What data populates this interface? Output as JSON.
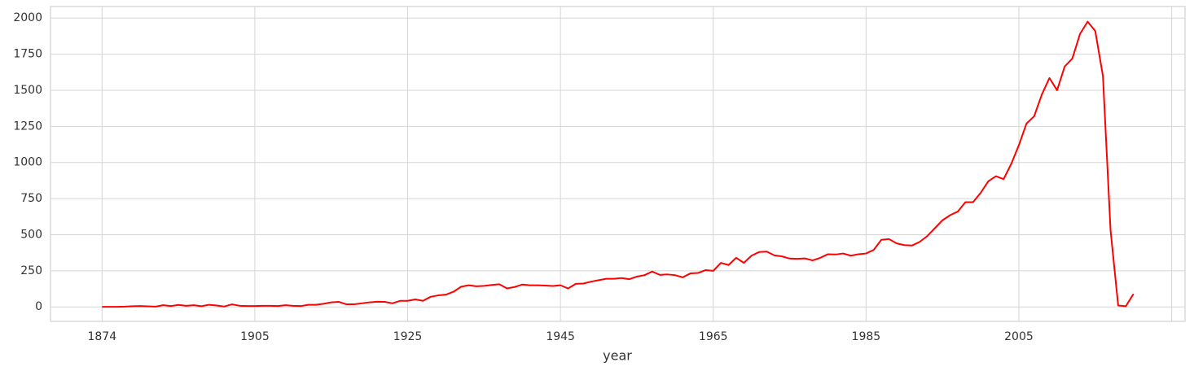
{
  "chart_data": {
    "type": "line",
    "x_label": "year",
    "categories": [
      "1874",
      null,
      null,
      null,
      null,
      null,
      null,
      null,
      null,
      null,
      null,
      null,
      null,
      null,
      null,
      null,
      null,
      null,
      null,
      null,
      "1905",
      null,
      null,
      null,
      null,
      null,
      null,
      null,
      null,
      null,
      null,
      null,
      null,
      null,
      null,
      null,
      null,
      null,
      null,
      null,
      "1925",
      null,
      null,
      null,
      null,
      null,
      null,
      null,
      null,
      null,
      null,
      null,
      null,
      null,
      null,
      null,
      null,
      null,
      null,
      null,
      "1945",
      null,
      null,
      null,
      null,
      null,
      null,
      null,
      null,
      null,
      null,
      null,
      null,
      null,
      null,
      null,
      null,
      null,
      null,
      null,
      "1965",
      null,
      null,
      null,
      null,
      null,
      null,
      null,
      null,
      null,
      null,
      null,
      null,
      null,
      null,
      null,
      null,
      null,
      null,
      null,
      "1985",
      null,
      null,
      null,
      null,
      null,
      null,
      null,
      null,
      null,
      null,
      null,
      null,
      null,
      null,
      null,
      null,
      null,
      null,
      null,
      "2005",
      null,
      null,
      null,
      null,
      null,
      null,
      null,
      null,
      null,
      null,
      null,
      null,
      null,
      null,
      null
    ],
    "values": [
      1,
      1,
      1,
      2,
      5,
      6,
      4,
      2,
      12,
      6,
      14,
      8,
      12,
      5,
      15,
      10,
      3,
      18,
      8,
      6,
      6,
      8,
      8,
      6,
      12,
      8,
      6,
      15,
      15,
      22,
      32,
      35,
      18,
      18,
      25,
      32,
      36,
      35,
      25,
      42,
      42,
      52,
      42,
      70,
      80,
      85,
      105,
      140,
      150,
      143,
      146,
      152,
      157,
      128,
      138,
      155,
      150,
      150,
      148,
      145,
      150,
      128,
      160,
      162,
      175,
      185,
      195,
      195,
      200,
      192,
      210,
      220,
      245,
      222,
      225,
      220,
      205,
      232,
      235,
      255,
      250,
      305,
      290,
      340,
      305,
      355,
      380,
      383,
      357,
      350,
      335,
      333,
      336,
      322,
      340,
      365,
      363,
      370,
      355,
      365,
      370,
      395,
      465,
      470,
      440,
      428,
      425,
      450,
      490,
      545,
      600,
      635,
      660,
      725,
      725,
      790,
      870,
      905,
      885,
      990,
      1120,
      1270,
      1320,
      1470,
      1585,
      1500,
      1665,
      1720,
      1890,
      1975,
      1910,
      1600,
      530,
      10,
      5,
      90
    ],
    "color": "#ff0000",
    "ylim": [
      -100,
      2080
    ],
    "yticks": [
      0,
      250,
      500,
      750,
      1000,
      1250,
      1500,
      1750,
      2000
    ],
    "grid": true
  }
}
